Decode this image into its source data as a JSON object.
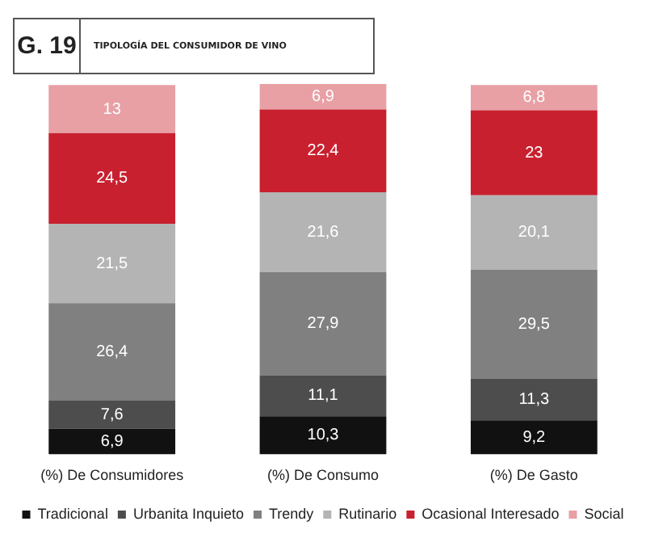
{
  "chart_data": {
    "type": "bar",
    "title": "G. 19",
    "subtitle": "TIPOLOGÍA DEL CONSUMIDOR DE VINO",
    "categories": [
      "(%) De Consumidores",
      "(%) De Consumo",
      "(%) De Gasto"
    ],
    "stacked": true,
    "legend": "bottom",
    "grid": false,
    "tick_labels": "x",
    "series": [
      {
        "name": "Tradicional",
        "color": "#111111",
        "values": [
          6.9,
          10.3,
          9.2
        ],
        "value_labels": [
          "6,9",
          "10,3",
          "9,2"
        ]
      },
      {
        "name": "Urbanita Inquieto",
        "color": "#4d4d4d",
        "values": [
          7.6,
          11.1,
          11.3
        ],
        "value_labels": [
          "7,6",
          "11,1",
          "11,3"
        ]
      },
      {
        "name": "Trendy",
        "color": "#808080",
        "values": [
          26.4,
          27.9,
          29.5
        ],
        "value_labels": [
          "26,4",
          "27,9",
          "29,5"
        ]
      },
      {
        "name": "Rutinario",
        "color": "#b4b4b4",
        "values": [
          21.5,
          21.6,
          20.1
        ],
        "value_labels": [
          "21,5",
          "21,6",
          "20,1"
        ]
      },
      {
        "name": "Ocasional Interesado",
        "color": "#c8202f",
        "values": [
          24.5,
          22.4,
          23
        ],
        "value_labels": [
          "24,5",
          "22,4",
          "23"
        ]
      },
      {
        "name": "Social",
        "color": "#e8a0a5",
        "values": [
          13,
          6.9,
          6.8
        ],
        "value_labels": [
          "13",
          "6,9",
          "6,8"
        ]
      }
    ]
  }
}
